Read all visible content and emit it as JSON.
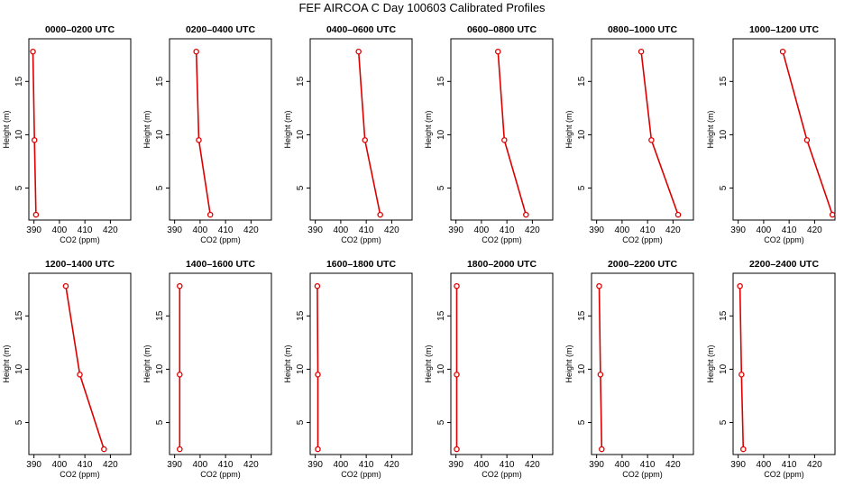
{
  "figure_title": "FEF AIRCOA C  Day 100603  Calibrated Profiles",
  "colors": {
    "series": "#dd0000",
    "axis": "#000000",
    "background": "#ffffff"
  },
  "chart_data": [
    {
      "type": "line",
      "title": "0000–0200 UTC",
      "xlabel": "CO2 (ppm)",
      "ylabel": "Height (m)",
      "xlim": [
        388,
        428
      ],
      "ylim": [
        2,
        19
      ],
      "xticks": [
        390,
        400,
        410,
        420
      ],
      "yticks": [
        5,
        10,
        15
      ],
      "co2": [
        389.6,
        390.2,
        390.8
      ],
      "height": [
        17.8,
        9.5,
        2.5
      ]
    },
    {
      "type": "line",
      "title": "0200–0400 UTC",
      "xlabel": "CO2 (ppm)",
      "ylabel": "Height (m)",
      "xlim": [
        388,
        428
      ],
      "ylim": [
        2,
        19
      ],
      "xticks": [
        390,
        400,
        410,
        420
      ],
      "yticks": [
        5,
        10,
        15
      ],
      "co2": [
        398.5,
        399.5,
        404.0
      ],
      "height": [
        17.8,
        9.5,
        2.5
      ]
    },
    {
      "type": "line",
      "title": "0400–0600 UTC",
      "xlabel": "CO2 (ppm)",
      "ylabel": "Height (m)",
      "xlim": [
        388,
        428
      ],
      "ylim": [
        2,
        19
      ],
      "xticks": [
        390,
        400,
        410,
        420
      ],
      "yticks": [
        5,
        10,
        15
      ],
      "co2": [
        407.0,
        409.5,
        415.5
      ],
      "height": [
        17.8,
        9.5,
        2.5
      ]
    },
    {
      "type": "line",
      "title": "0600–0800 UTC",
      "xlabel": "CO2 (ppm)",
      "ylabel": "Height (m)",
      "xlim": [
        388,
        428
      ],
      "ylim": [
        2,
        19
      ],
      "xticks": [
        390,
        400,
        410,
        420
      ],
      "yticks": [
        5,
        10,
        15
      ],
      "co2": [
        406.5,
        409.0,
        417.5
      ],
      "height": [
        17.8,
        9.5,
        2.5
      ]
    },
    {
      "type": "line",
      "title": "0800–1000 UTC",
      "xlabel": "CO2 (ppm)",
      "ylabel": "Height (m)",
      "xlim": [
        388,
        428
      ],
      "ylim": [
        2,
        19
      ],
      "xticks": [
        390,
        400,
        410,
        420
      ],
      "yticks": [
        5,
        10,
        15
      ],
      "co2": [
        407.5,
        411.5,
        422.0
      ],
      "height": [
        17.8,
        9.5,
        2.5
      ]
    },
    {
      "type": "line",
      "title": "1000–1200 UTC",
      "xlabel": "CO2 (ppm)",
      "ylabel": "Height (m)",
      "xlim": [
        388,
        428
      ],
      "ylim": [
        2,
        19
      ],
      "xticks": [
        390,
        400,
        410,
        420
      ],
      "yticks": [
        5,
        10,
        15
      ],
      "co2": [
        407.5,
        417.0,
        427.0
      ],
      "height": [
        17.8,
        9.5,
        2.5
      ]
    },
    {
      "type": "line",
      "title": "1200–1400 UTC",
      "xlabel": "CO2 (ppm)",
      "ylabel": "Height (m)",
      "xlim": [
        388,
        428
      ],
      "ylim": [
        2,
        19
      ],
      "xticks": [
        390,
        400,
        410,
        420
      ],
      "yticks": [
        5,
        10,
        15
      ],
      "co2": [
        402.5,
        408.0,
        417.5
      ],
      "height": [
        17.8,
        9.5,
        2.5
      ]
    },
    {
      "type": "line",
      "title": "1400–1600 UTC",
      "xlabel": "CO2 (ppm)",
      "ylabel": "Height (m)",
      "xlim": [
        388,
        428
      ],
      "ylim": [
        2,
        19
      ],
      "xticks": [
        390,
        400,
        410,
        420
      ],
      "yticks": [
        5,
        10,
        15
      ],
      "co2": [
        392.0,
        392.0,
        392.0
      ],
      "height": [
        17.8,
        9.5,
        2.5
      ]
    },
    {
      "type": "line",
      "title": "1600–1800 UTC",
      "xlabel": "CO2 (ppm)",
      "ylabel": "Height (m)",
      "xlim": [
        388,
        428
      ],
      "ylim": [
        2,
        19
      ],
      "xticks": [
        390,
        400,
        410,
        420
      ],
      "yticks": [
        5,
        10,
        15
      ],
      "co2": [
        390.8,
        391.0,
        391.0
      ],
      "height": [
        17.8,
        9.5,
        2.5
      ]
    },
    {
      "type": "line",
      "title": "1800–2000 UTC",
      "xlabel": "CO2 (ppm)",
      "ylabel": "Height (m)",
      "xlim": [
        388,
        428
      ],
      "ylim": [
        2,
        19
      ],
      "xticks": [
        390,
        400,
        410,
        420
      ],
      "yticks": [
        5,
        10,
        15
      ],
      "co2": [
        390.3,
        390.3,
        390.3
      ],
      "height": [
        17.8,
        9.5,
        2.5
      ]
    },
    {
      "type": "line",
      "title": "2000–2200 UTC",
      "xlabel": "CO2 (ppm)",
      "ylabel": "Height (m)",
      "xlim": [
        388,
        428
      ],
      "ylim": [
        2,
        19
      ],
      "xticks": [
        390,
        400,
        410,
        420
      ],
      "yticks": [
        5,
        10,
        15
      ],
      "co2": [
        391.0,
        391.5,
        392.0
      ],
      "height": [
        17.8,
        9.5,
        2.5
      ]
    },
    {
      "type": "line",
      "title": "2200–2400 UTC",
      "xlabel": "CO2 (ppm)",
      "ylabel": "Height (m)",
      "xlim": [
        388,
        428
      ],
      "ylim": [
        2,
        19
      ],
      "xticks": [
        390,
        400,
        410,
        420
      ],
      "yticks": [
        5,
        10,
        15
      ],
      "co2": [
        390.7,
        391.3,
        392.0
      ],
      "height": [
        17.8,
        9.5,
        2.5
      ]
    }
  ]
}
